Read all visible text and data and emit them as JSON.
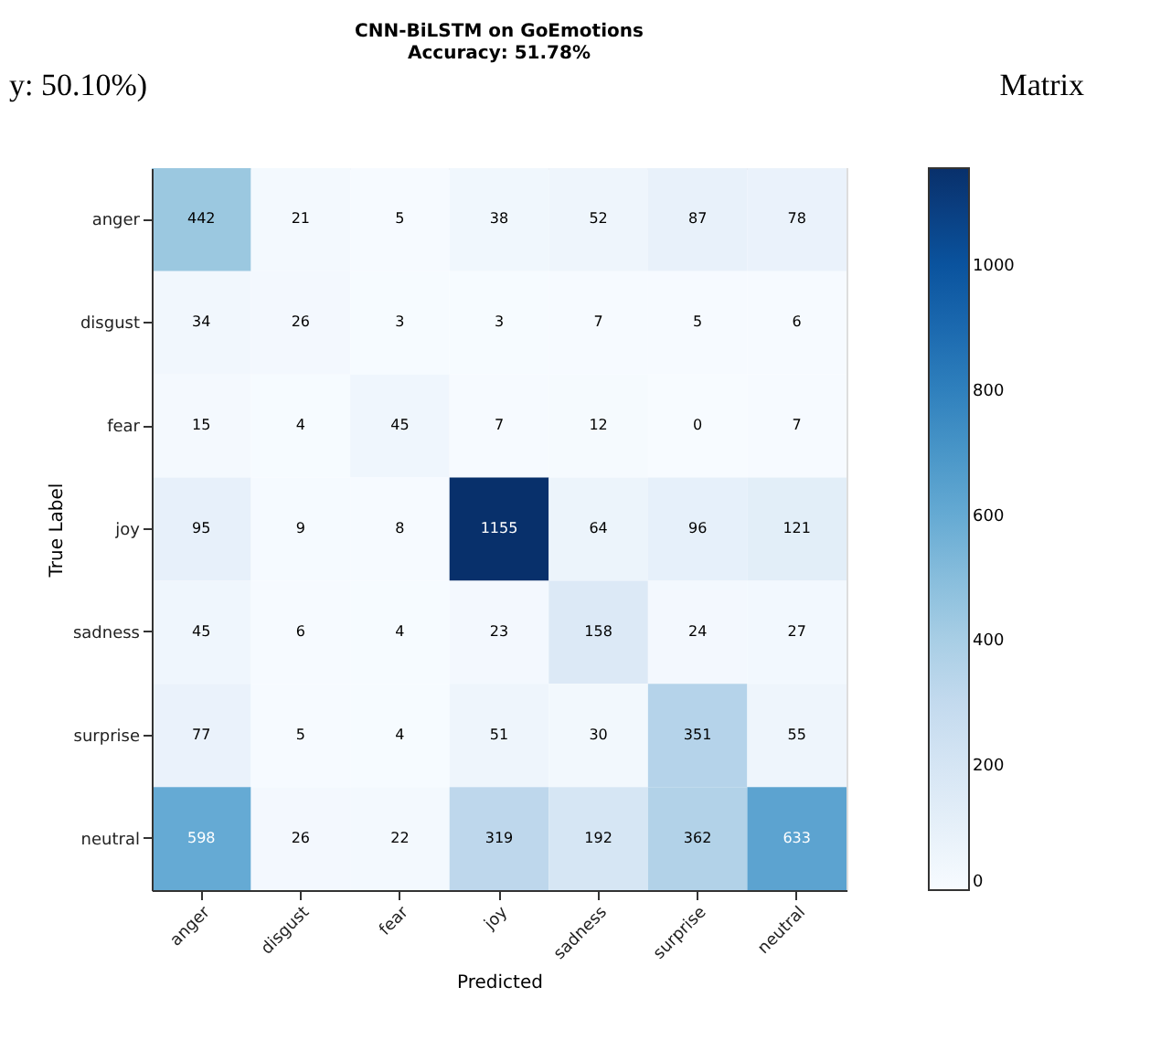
{
  "chart_data": {
    "type": "heatmap",
    "title": [
      "CNN-BiLSTM on GoEmotions",
      "Accuracy: 51.78%"
    ],
    "xlabel": "Predicted",
    "ylabel": "True Label",
    "categories": [
      "anger",
      "disgust",
      "fear",
      "joy",
      "sadness",
      "surprise",
      "neutral"
    ],
    "y_categories": [
      "anger",
      "disgust",
      "fear",
      "joy",
      "sadness",
      "surprise",
      "neutral"
    ],
    "cells": [
      [
        442,
        21,
        5,
        38,
        52,
        87,
        78
      ],
      [
        34,
        26,
        3,
        3,
        7,
        5,
        6
      ],
      [
        15,
        4,
        45,
        7,
        12,
        0,
        7
      ],
      [
        95,
        9,
        8,
        1155,
        64,
        96,
        121
      ],
      [
        45,
        6,
        4,
        23,
        158,
        24,
        27
      ],
      [
        77,
        5,
        4,
        51,
        30,
        351,
        55
      ],
      [
        598,
        26,
        22,
        319,
        192,
        362,
        633
      ]
    ],
    "clim": [
      0,
      1155
    ],
    "cticks": [
      0,
      200,
      400,
      600,
      800,
      1000
    ],
    "data_labels": true,
    "annotations": [
      "y: 50.10%)",
      "Matrix"
    ]
  }
}
